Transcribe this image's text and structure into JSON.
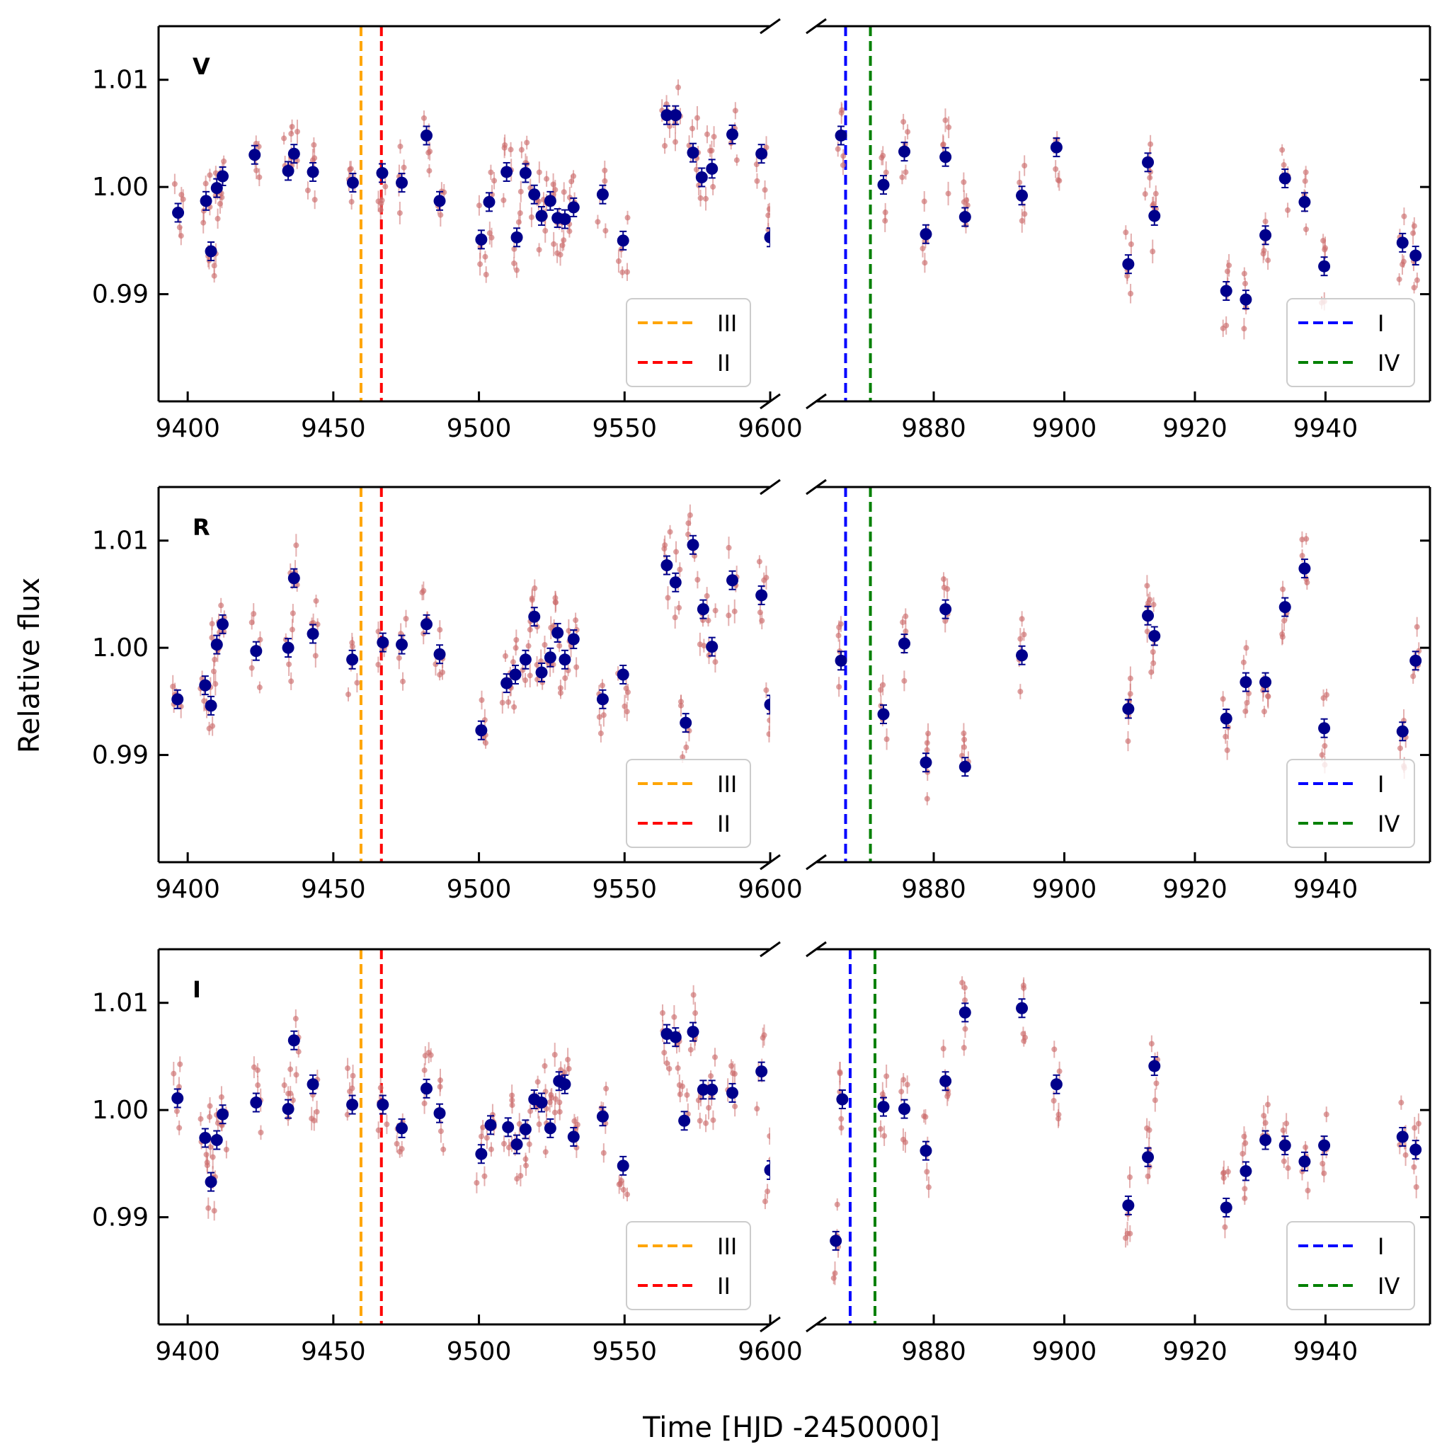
{
  "figure": {
    "xlabel": "Time [HJD -2450000]",
    "ylabel": "Relative flux"
  },
  "chart_data": {
    "type": "scatter",
    "ylim": [
      0.98,
      1.015
    ],
    "yticks": [
      0.99,
      1.0,
      1.01
    ],
    "ytick_labels": [
      "0.99",
      "1.00",
      "1.01"
    ],
    "left_xlim": [
      9390,
      9600
    ],
    "right_xlim": [
      9862,
      9956
    ],
    "left_xticks": [
      9400,
      9450,
      9500,
      9550,
      9600
    ],
    "right_xticks": [
      9880,
      9900,
      9920,
      9940
    ],
    "colors": {
      "binned": "#00008b",
      "individual": "#cd6f6f",
      "III": "#ffa500",
      "II": "#ff0000",
      "I": "#0000ff",
      "IV": "#008000"
    },
    "legend_left": [
      {
        "label": "III",
        "color": "#ffa500"
      },
      {
        "label": "II",
        "color": "#ff0000"
      }
    ],
    "legend_right": [
      {
        "label": "I",
        "color": "#0000ff"
      },
      {
        "label": "IV",
        "color": "#008000"
      }
    ],
    "panels": [
      {
        "band": "V",
        "vlines_left": [
          {
            "x": 9459.5,
            "color": "#ffa500"
          },
          {
            "x": 9466.5,
            "color": "#ff0000"
          }
        ],
        "vlines_right": [
          {
            "x": 9866.5,
            "color": "#0000ff"
          },
          {
            "x": 9870.3,
            "color": "#008000"
          }
        ],
        "binned": [
          [
            9396.7,
            0.9976
          ],
          [
            9406.3,
            0.9987
          ],
          [
            9408.0,
            0.994
          ],
          [
            9410.0,
            0.9999
          ],
          [
            9412.0,
            1.001
          ],
          [
            9423.0,
            1.003
          ],
          [
            9434.5,
            1.0015
          ],
          [
            9436.5,
            1.0031
          ],
          [
            9443.0,
            1.0014
          ],
          [
            9456.7,
            1.0004
          ],
          [
            9466.8,
            1.0013
          ],
          [
            9473.5,
            1.0004
          ],
          [
            9482.0,
            1.0048
          ],
          [
            9486.5,
            0.9987
          ],
          [
            9500.8,
            0.9951
          ],
          [
            9503.5,
            0.9986
          ],
          [
            9509.5,
            1.0014
          ],
          [
            9513.0,
            0.9953
          ],
          [
            9516.0,
            1.0013
          ],
          [
            9519.0,
            0.9993
          ],
          [
            9521.5,
            0.9973
          ],
          [
            9524.5,
            0.9987
          ],
          [
            9527.0,
            0.9971
          ],
          [
            9529.5,
            0.997
          ],
          [
            9532.5,
            0.9981
          ],
          [
            9542.5,
            0.9993
          ],
          [
            9549.5,
            0.995
          ],
          [
            9564.5,
            1.0067
          ],
          [
            9567.5,
            1.0067
          ],
          [
            9573.5,
            1.0032
          ],
          [
            9576.5,
            1.0009
          ],
          [
            9580.0,
            1.0017
          ],
          [
            9587.0,
            1.0049
          ],
          [
            9597.0,
            1.0031
          ],
          [
            9600.0,
            0.9953
          ]
        ],
        "binned_right": [
          [
            9865.8,
            1.0048
          ],
          [
            9872.3,
            1.0002
          ],
          [
            9875.5,
            1.0033
          ],
          [
            9878.8,
            0.9956
          ],
          [
            9881.8,
            1.0028
          ],
          [
            9884.8,
            0.9972
          ],
          [
            9893.5,
            0.9992
          ],
          [
            9898.8,
            1.0037
          ],
          [
            9909.8,
            0.9928
          ],
          [
            9912.8,
            1.0023
          ],
          [
            9913.8,
            0.9973
          ],
          [
            9924.8,
            0.9903
          ],
          [
            9927.8,
            0.9895
          ],
          [
            9930.8,
            0.9955
          ],
          [
            9933.8,
            1.0008
          ],
          [
            9936.8,
            0.9986
          ],
          [
            9939.8,
            0.9926
          ],
          [
            9951.8,
            0.9948
          ],
          [
            9953.8,
            0.9936
          ]
        ]
      },
      {
        "band": "R",
        "vlines_left": [
          {
            "x": 9459.5,
            "color": "#ffa500"
          },
          {
            "x": 9466.5,
            "color": "#ff0000"
          }
        ],
        "vlines_right": [
          {
            "x": 9866.5,
            "color": "#0000ff"
          },
          {
            "x": 9870.3,
            "color": "#008000"
          }
        ],
        "binned": [
          [
            9396.5,
            0.9952
          ],
          [
            9406.0,
            0.9965
          ],
          [
            9408.0,
            0.9946
          ],
          [
            9410.0,
            1.0003
          ],
          [
            9412.0,
            1.0022
          ],
          [
            9423.5,
            0.9997
          ],
          [
            9434.5,
            1.0
          ],
          [
            9436.5,
            1.0065
          ],
          [
            9443.0,
            1.0013
          ],
          [
            9456.5,
            0.9989
          ],
          [
            9467.0,
            1.0005
          ],
          [
            9473.5,
            1.0003
          ],
          [
            9482.0,
            1.0022
          ],
          [
            9486.5,
            0.9994
          ],
          [
            9500.8,
            0.9923
          ],
          [
            9509.5,
            0.9967
          ],
          [
            9512.5,
            0.9975
          ],
          [
            9516.0,
            0.9989
          ],
          [
            9519.0,
            1.0029
          ],
          [
            9521.5,
            0.9977
          ],
          [
            9524.5,
            0.9991
          ],
          [
            9527.0,
            1.0014
          ],
          [
            9529.5,
            0.9989
          ],
          [
            9532.5,
            1.0008
          ],
          [
            9542.5,
            0.9952
          ],
          [
            9549.5,
            0.9975
          ],
          [
            9564.5,
            1.0077
          ],
          [
            9567.5,
            1.0061
          ],
          [
            9571.0,
            0.993
          ],
          [
            9573.5,
            1.0096
          ],
          [
            9577.0,
            1.0036
          ],
          [
            9580.0,
            1.0001
          ],
          [
            9587.0,
            1.0063
          ],
          [
            9597.0,
            1.0049
          ],
          [
            9600.0,
            0.9947
          ]
        ],
        "binned_right": [
          [
            9865.8,
            0.9988
          ],
          [
            9872.3,
            0.9938
          ],
          [
            9875.5,
            1.0004
          ],
          [
            9878.8,
            0.9893
          ],
          [
            9881.8,
            1.0036
          ],
          [
            9884.8,
            0.9889
          ],
          [
            9893.5,
            0.9993
          ],
          [
            9909.8,
            0.9943
          ],
          [
            9912.8,
            1.003
          ],
          [
            9913.8,
            1.0011
          ],
          [
            9924.8,
            0.9934
          ],
          [
            9927.8,
            0.9968
          ],
          [
            9930.8,
            0.9968
          ],
          [
            9933.8,
            1.0038
          ],
          [
            9936.8,
            1.0074
          ],
          [
            9939.8,
            0.9925
          ],
          [
            9951.8,
            0.9922
          ],
          [
            9953.8,
            0.9988
          ]
        ]
      },
      {
        "band": "I",
        "vlines_left": [
          {
            "x": 9459.5,
            "color": "#ffa500"
          },
          {
            "x": 9466.5,
            "color": "#ff0000"
          }
        ],
        "vlines_right": [
          {
            "x": 9867.2,
            "color": "#0000ff"
          },
          {
            "x": 9871.0,
            "color": "#008000"
          }
        ],
        "binned": [
          [
            9396.5,
            1.0011
          ],
          [
            9406.0,
            0.9974
          ],
          [
            9408.0,
            0.9933
          ],
          [
            9410.0,
            0.9972
          ],
          [
            9412.0,
            0.9996
          ],
          [
            9423.5,
            1.0007
          ],
          [
            9434.5,
            1.0001
          ],
          [
            9436.5,
            1.0065
          ],
          [
            9443.0,
            1.0024
          ],
          [
            9456.5,
            1.0005
          ],
          [
            9467.0,
            1.0005
          ],
          [
            9473.5,
            0.9983
          ],
          [
            9482.0,
            1.002
          ],
          [
            9486.5,
            0.9997
          ],
          [
            9500.8,
            0.9959
          ],
          [
            9504.0,
            0.9986
          ],
          [
            9510.0,
            0.9984
          ],
          [
            9513.0,
            0.9968
          ],
          [
            9516.0,
            0.9982
          ],
          [
            9519.0,
            1.001
          ],
          [
            9521.5,
            1.0007
          ],
          [
            9524.5,
            0.9983
          ],
          [
            9527.5,
            1.0027
          ],
          [
            9529.5,
            1.0024
          ],
          [
            9532.5,
            0.9975
          ],
          [
            9542.5,
            0.9994
          ],
          [
            9549.5,
            0.9948
          ],
          [
            9564.5,
            1.0071
          ],
          [
            9567.5,
            1.0068
          ],
          [
            9570.5,
            0.999
          ],
          [
            9573.5,
            1.0073
          ],
          [
            9577.0,
            1.0019
          ],
          [
            9580.0,
            1.0019
          ],
          [
            9587.0,
            1.0016
          ],
          [
            9597.0,
            1.0036
          ],
          [
            9600.0,
            0.9944
          ]
        ],
        "binned_right": [
          [
            9865.0,
            0.9878
          ],
          [
            9866.0,
            1.001
          ],
          [
            9872.3,
            1.0003
          ],
          [
            9875.5,
            1.0001
          ],
          [
            9878.8,
            0.9962
          ],
          [
            9881.8,
            1.0027
          ],
          [
            9884.8,
            1.0091
          ],
          [
            9893.5,
            1.0095
          ],
          [
            9898.8,
            1.0024
          ],
          [
            9909.8,
            0.9911
          ],
          [
            9912.8,
            0.9956
          ],
          [
            9913.8,
            1.0041
          ],
          [
            9924.8,
            0.9909
          ],
          [
            9927.8,
            0.9943
          ],
          [
            9930.8,
            0.9972
          ],
          [
            9933.8,
            0.9967
          ],
          [
            9936.8,
            0.9952
          ],
          [
            9939.8,
            0.9967
          ],
          [
            9951.8,
            0.9975
          ],
          [
            9953.8,
            0.9963
          ]
        ]
      }
    ]
  }
}
